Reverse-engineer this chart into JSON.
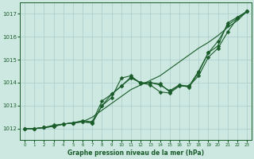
{
  "title": "Graphe pression niveau de la mer (hPa)",
  "bg_color": "#cce8e0",
  "grid_color": "#aacccc",
  "line_color": "#1a5c2a",
  "xlim": [
    -0.5,
    23.5
  ],
  "ylim": [
    1011.5,
    1017.5
  ],
  "yticks": [
    1012,
    1013,
    1014,
    1015,
    1016,
    1017
  ],
  "xticks": [
    0,
    1,
    2,
    3,
    4,
    5,
    6,
    7,
    8,
    9,
    10,
    11,
    12,
    13,
    14,
    15,
    16,
    17,
    18,
    19,
    20,
    21,
    22,
    23
  ],
  "series_with_markers": [
    [
      1012.0,
      1012.0,
      1012.05,
      1012.1,
      1012.2,
      1012.25,
      1012.3,
      1012.25,
      1013.0,
      1013.35,
      1014.2,
      1014.3,
      1013.95,
      1014.0,
      1013.95,
      1013.6,
      1013.9,
      1013.85,
      1014.5,
      1015.3,
      1015.8,
      1016.5,
      1016.8,
      1017.1
    ],
    [
      1012.0,
      1012.0,
      1012.05,
      1012.1,
      1012.2,
      1012.25,
      1012.3,
      1012.25,
      1013.0,
      1013.5,
      1013.85,
      1014.25,
      1014.0,
      1013.9,
      1013.6,
      1013.55,
      1013.85,
      1013.85,
      1014.3,
      1015.1,
      1015.5,
      1016.2,
      1016.8,
      1017.1
    ],
    [
      1012.0,
      1012.0,
      1012.05,
      1012.15,
      1012.2,
      1012.25,
      1012.35,
      1012.3,
      1013.2,
      1013.5,
      1013.85,
      1014.2,
      1014.0,
      1014.0,
      1013.9,
      1013.65,
      1013.9,
      1013.8,
      1014.45,
      1015.3,
      1015.6,
      1016.6,
      1016.85,
      1017.1
    ]
  ],
  "series_smooth": [
    1012.0,
    1012.0,
    1012.05,
    1012.1,
    1012.2,
    1012.25,
    1012.3,
    1012.5,
    1012.8,
    1013.1,
    1013.4,
    1013.7,
    1013.9,
    1014.1,
    1014.3,
    1014.6,
    1014.9,
    1015.2,
    1015.5,
    1015.75,
    1016.05,
    1016.4,
    1016.7,
    1017.1
  ],
  "marker": "D",
  "markersize": 2.5,
  "linewidth": 0.8
}
